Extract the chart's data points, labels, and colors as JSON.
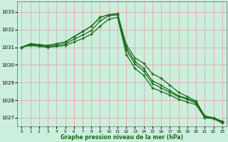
{
  "xlabel": "Graphe pression niveau de la mer (hPa)",
  "background_color": "#cceedd",
  "grid_color": "#ddaaaa",
  "line_color": "#1a6b1a",
  "xlim": [
    -0.5,
    23.5
  ],
  "ylim": [
    1026.5,
    1033.6
  ],
  "yticks": [
    1027,
    1028,
    1029,
    1030,
    1031,
    1032,
    1033
  ],
  "xticks": [
    0,
    1,
    2,
    3,
    4,
    5,
    6,
    7,
    8,
    9,
    10,
    11,
    12,
    13,
    14,
    15,
    16,
    17,
    18,
    19,
    20,
    21,
    22,
    23
  ],
  "series": [
    [
      1031.0,
      1031.2,
      1031.15,
      1031.1,
      1031.2,
      1031.3,
      1031.6,
      1031.9,
      1032.2,
      1032.7,
      1032.85,
      1032.9,
      1031.15,
      1030.4,
      1030.1,
      1029.5,
      1029.25,
      1028.85,
      1028.45,
      1028.2,
      1027.95,
      1027.1,
      1027.0,
      1026.8
    ],
    [
      1031.0,
      1031.2,
      1031.15,
      1031.1,
      1031.2,
      1031.3,
      1031.6,
      1031.9,
      1032.2,
      1032.7,
      1032.85,
      1032.9,
      1031.0,
      1030.2,
      1029.8,
      1029.1,
      1028.85,
      1028.55,
      1028.25,
      1028.1,
      1027.9,
      1027.1,
      1027.0,
      1026.8
    ],
    [
      1031.0,
      1031.15,
      1031.1,
      1031.05,
      1031.1,
      1031.2,
      1031.45,
      1031.7,
      1031.95,
      1032.5,
      1032.78,
      1032.85,
      1030.85,
      1030.05,
      1029.65,
      1028.95,
      1028.7,
      1028.45,
      1028.2,
      1028.05,
      1027.85,
      1027.05,
      1026.98,
      1026.75
    ],
    [
      1031.0,
      1031.1,
      1031.05,
      1031.0,
      1031.05,
      1031.1,
      1031.3,
      1031.5,
      1031.75,
      1032.2,
      1032.6,
      1032.7,
      1030.6,
      1029.8,
      1029.4,
      1028.7,
      1028.5,
      1028.3,
      1028.05,
      1027.9,
      1027.75,
      1027.0,
      1026.95,
      1026.7
    ]
  ]
}
